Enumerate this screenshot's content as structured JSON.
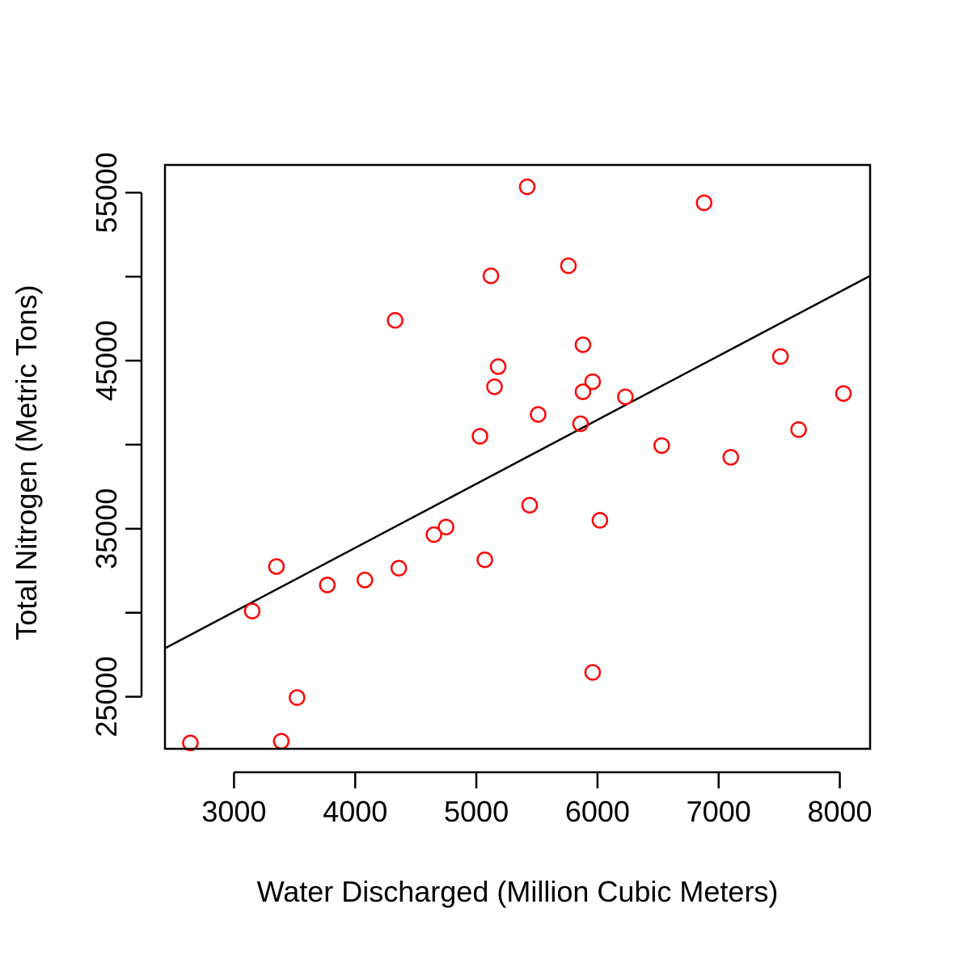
{
  "chart_data": {
    "type": "scatter",
    "title": "",
    "xlabel": "Water Discharged (Million Cubic Meters)",
    "ylabel": "Total Nitrogen (Metric Tons)",
    "xlim": [
      2430,
      8250
    ],
    "ylim": [
      21900,
      56650
    ],
    "x_ticks": [
      3000,
      4000,
      5000,
      6000,
      7000,
      8000
    ],
    "y_ticks": [
      25000,
      30000,
      35000,
      40000,
      45000,
      50000,
      55000
    ],
    "y_tick_labels": [
      "25000",
      "",
      "35000",
      "",
      "45000",
      "",
      "55000"
    ],
    "grid": false,
    "point_color": "#ff0000",
    "line_color": "#000000",
    "points": [
      {
        "x": 2640,
        "y": 22250
      },
      {
        "x": 3150,
        "y": 30100
      },
      {
        "x": 3350,
        "y": 32750
      },
      {
        "x": 3390,
        "y": 22350
      },
      {
        "x": 3520,
        "y": 24950
      },
      {
        "x": 3770,
        "y": 31650
      },
      {
        "x": 4080,
        "y": 31950
      },
      {
        "x": 4330,
        "y": 47400
      },
      {
        "x": 4360,
        "y": 32650
      },
      {
        "x": 4650,
        "y": 34650
      },
      {
        "x": 4750,
        "y": 35100
      },
      {
        "x": 5030,
        "y": 40500
      },
      {
        "x": 5070,
        "y": 33150
      },
      {
        "x": 5120,
        "y": 50050
      },
      {
        "x": 5150,
        "y": 43450
      },
      {
        "x": 5180,
        "y": 44650
      },
      {
        "x": 5420,
        "y": 55350
      },
      {
        "x": 5440,
        "y": 36400
      },
      {
        "x": 5510,
        "y": 41800
      },
      {
        "x": 5760,
        "y": 50650
      },
      {
        "x": 5860,
        "y": 41250
      },
      {
        "x": 5880,
        "y": 43150
      },
      {
        "x": 5880,
        "y": 45950
      },
      {
        "x": 5960,
        "y": 43750
      },
      {
        "x": 5960,
        "y": 26450
      },
      {
        "x": 6020,
        "y": 35500
      },
      {
        "x": 6230,
        "y": 42850
      },
      {
        "x": 6530,
        "y": 39950
      },
      {
        "x": 6880,
        "y": 54400
      },
      {
        "x": 7100,
        "y": 39250
      },
      {
        "x": 7510,
        "y": 45250
      },
      {
        "x": 7660,
        "y": 40900
      },
      {
        "x": 8030,
        "y": 43050
      }
    ],
    "regression_line": {
      "x": [
        2430,
        8250
      ],
      "y": [
        27880,
        50050
      ]
    }
  }
}
